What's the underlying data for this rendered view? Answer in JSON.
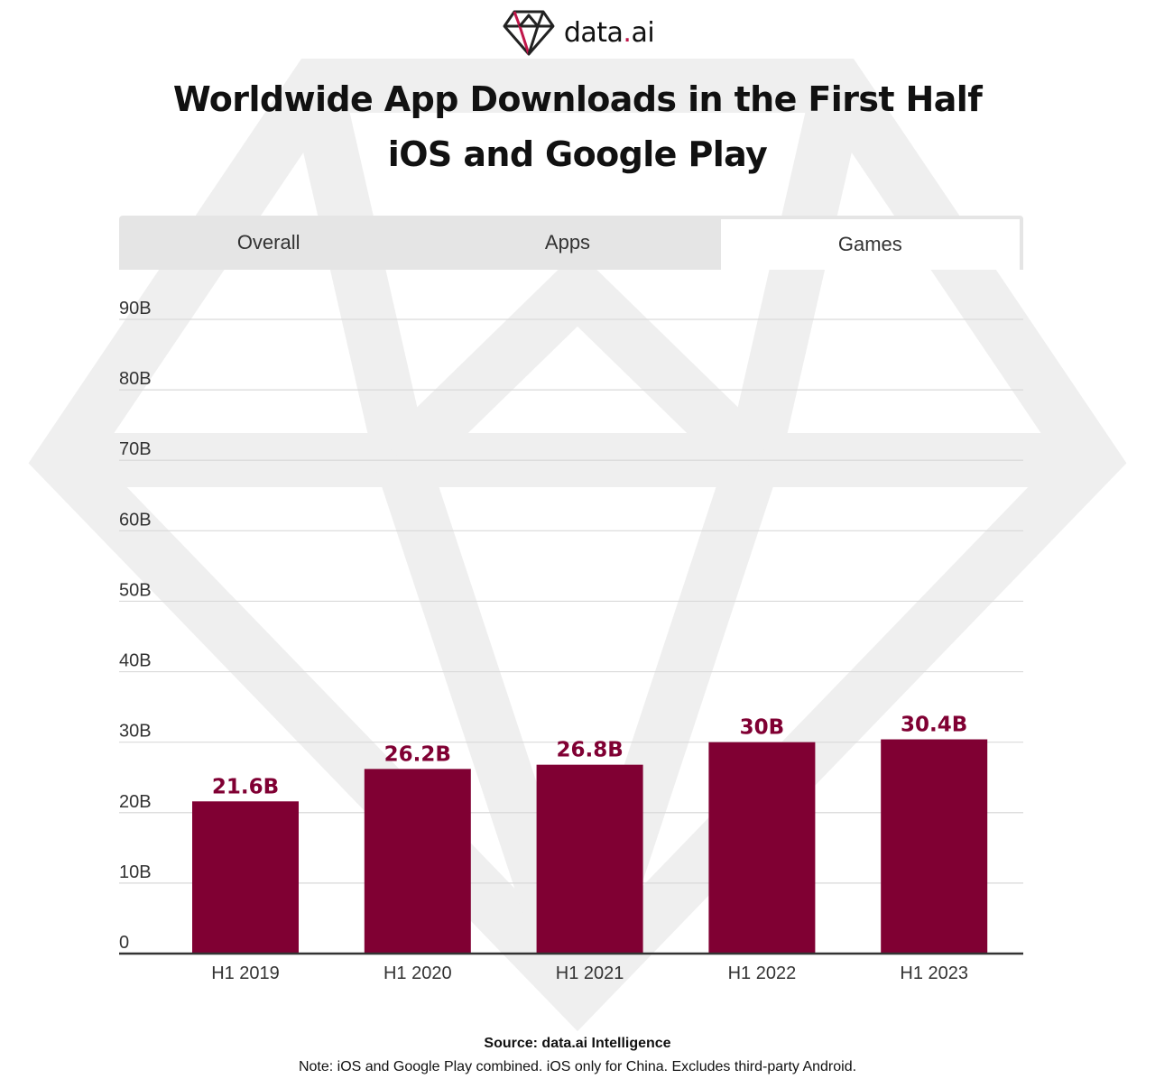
{
  "logo": {
    "text_main": "data",
    "text_dot": ".",
    "text_suffix": "ai"
  },
  "title": {
    "line1": "Worldwide App Downloads in the First Half",
    "line2": "iOS and Google Play"
  },
  "tabs": [
    {
      "label": "Overall",
      "active": false
    },
    {
      "label": "Apps",
      "active": false
    },
    {
      "label": "Games",
      "active": true
    }
  ],
  "chart_data": {
    "type": "bar",
    "categories": [
      "H1 2019",
      "H1 2020",
      "H1 2021",
      "H1 2022",
      "H1 2023"
    ],
    "values": [
      21.6,
      26.2,
      26.8,
      30,
      30.4
    ],
    "data_labels": [
      "21.6B",
      "26.2B",
      "26.8B",
      "30B",
      "30.4B"
    ],
    "yticks": [
      0,
      10,
      20,
      30,
      40,
      50,
      60,
      70,
      80,
      90
    ],
    "ytick_labels": [
      "0",
      "10B",
      "20B",
      "30B",
      "40B",
      "50B",
      "60B",
      "70B",
      "80B",
      "90B"
    ],
    "ylim": [
      0,
      90
    ],
    "grid": true,
    "bar_color": "#800033",
    "label_color": "#800033",
    "title": "",
    "xlabel": "",
    "ylabel": ""
  },
  "footer": {
    "source": "Source: data.ai Intelligence",
    "note": "Note: iOS and Google Play combined. iOS only for China. Excludes third-party Android."
  },
  "colors": {
    "brand_accent": "#c0174a",
    "bar": "#800033",
    "tab_bg": "#e5e5e5",
    "watermark": "#efefef"
  }
}
